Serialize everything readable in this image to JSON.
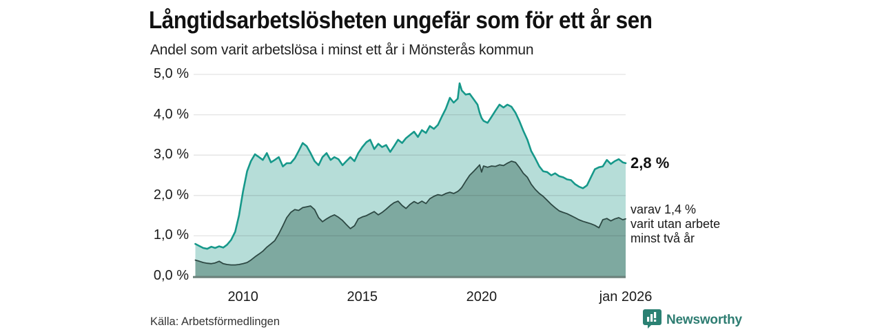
{
  "header": {
    "title": "Långtidsarbetslösheten ungefär som för ett år sen",
    "subtitle": "Andel som varit arbetslösa i minst ett år i Mönsterås kommun"
  },
  "annotations": {
    "latest_value": "2,8 %",
    "secondary_lines": [
      "varav 1,4 %",
      "varit utan arbete",
      "minst två år"
    ]
  },
  "source": "Källa: Arbetsförmedlingen",
  "branding": {
    "name": "Newsworthy",
    "logo_icon": "bar-chart-pin-icon",
    "color": "#2e7d72",
    "icon_bg": "#2b8173"
  },
  "chart_data": {
    "type": "area",
    "title": "Långtidsarbetslösheten ungefär som för ett år sen",
    "subtitle": "Andel som varit arbetslösa i minst ett år i Mönsterås kommun",
    "ylabel": "",
    "xlabel": "",
    "ylim": [
      0,
      5
    ],
    "xlim": [
      2007.9,
      2026.04
    ],
    "grid": true,
    "legend_position": "none",
    "y_ticks": [
      {
        "value": 0,
        "label": "0,0 %"
      },
      {
        "value": 1,
        "label": "1,0 %"
      },
      {
        "value": 2,
        "label": "2,0 %"
      },
      {
        "value": 3,
        "label": "3,0 %"
      },
      {
        "value": 4,
        "label": "4,0 %"
      },
      {
        "value": 5,
        "label": "5,0 %"
      }
    ],
    "x_ticks": [
      {
        "t": 2010,
        "label": "2010"
      },
      {
        "t": 2015,
        "label": "2015"
      },
      {
        "t": 2020,
        "label": "2020"
      },
      {
        "t": 2026.04,
        "label": "jan 2026"
      }
    ],
    "x": [
      2008.0,
      2008.17,
      2008.33,
      2008.5,
      2008.67,
      2008.83,
      2009.0,
      2009.17,
      2009.33,
      2009.5,
      2009.67,
      2009.83,
      2010.0,
      2010.17,
      2010.33,
      2010.5,
      2010.67,
      2010.83,
      2011.0,
      2011.17,
      2011.33,
      2011.5,
      2011.67,
      2011.83,
      2012.0,
      2012.17,
      2012.33,
      2012.5,
      2012.67,
      2012.83,
      2013.0,
      2013.17,
      2013.33,
      2013.5,
      2013.67,
      2013.83,
      2014.0,
      2014.17,
      2014.33,
      2014.5,
      2014.67,
      2014.83,
      2015.0,
      2015.17,
      2015.33,
      2015.5,
      2015.67,
      2015.83,
      2016.0,
      2016.17,
      2016.33,
      2016.5,
      2016.67,
      2016.83,
      2017.0,
      2017.17,
      2017.33,
      2017.5,
      2017.67,
      2017.83,
      2018.0,
      2018.17,
      2018.33,
      2018.5,
      2018.67,
      2018.83,
      2019.0,
      2019.08,
      2019.17,
      2019.33,
      2019.5,
      2019.67,
      2019.83,
      2019.92,
      2020.0,
      2020.08,
      2020.25,
      2020.42,
      2020.58,
      2020.75,
      2020.92,
      2021.08,
      2021.25,
      2021.42,
      2021.58,
      2021.75,
      2021.92,
      2022.08,
      2022.25,
      2022.42,
      2022.58,
      2022.75,
      2022.92,
      2023.08,
      2023.25,
      2023.42,
      2023.58,
      2023.75,
      2023.92,
      2024.08,
      2024.25,
      2024.42,
      2024.58,
      2024.75,
      2024.92,
      2025.08,
      2025.25,
      2025.42,
      2025.58,
      2025.75,
      2025.92,
      2026.04
    ],
    "series": [
      {
        "name": "Andel arbetslösa minst ett år",
        "line_color": "#16988a",
        "fill_color": "#b6ddd8",
        "line_width": 2.6,
        "latest_label": "2,8 %",
        "values": [
          0.8,
          0.75,
          0.7,
          0.68,
          0.73,
          0.7,
          0.74,
          0.71,
          0.78,
          0.9,
          1.1,
          1.5,
          2.1,
          2.6,
          2.85,
          3.02,
          2.95,
          2.88,
          3.05,
          2.82,
          2.88,
          2.95,
          2.72,
          2.8,
          2.8,
          2.92,
          3.1,
          3.3,
          3.22,
          3.05,
          2.85,
          2.75,
          2.95,
          3.05,
          2.88,
          2.95,
          2.9,
          2.75,
          2.85,
          2.95,
          2.85,
          3.05,
          3.2,
          3.32,
          3.38,
          3.15,
          3.28,
          3.2,
          3.25,
          3.08,
          3.22,
          3.38,
          3.3,
          3.42,
          3.5,
          3.58,
          3.45,
          3.62,
          3.55,
          3.72,
          3.65,
          3.75,
          3.95,
          4.15,
          4.42,
          4.3,
          4.4,
          4.78,
          4.6,
          4.5,
          4.52,
          4.38,
          4.25,
          4.05,
          3.92,
          3.85,
          3.8,
          3.95,
          4.1,
          4.25,
          4.18,
          4.25,
          4.2,
          4.05,
          3.85,
          3.6,
          3.38,
          3.1,
          2.92,
          2.72,
          2.6,
          2.58,
          2.5,
          2.55,
          2.48,
          2.45,
          2.4,
          2.38,
          2.28,
          2.22,
          2.18,
          2.25,
          2.45,
          2.65,
          2.7,
          2.72,
          2.88,
          2.78,
          2.85,
          2.9,
          2.82,
          2.8
        ]
      },
      {
        "name": "varav utan arbete minst två år",
        "line_color": "#2d4843",
        "fill_color": "#7ea9a0",
        "line_width": 1.8,
        "latest_label": "1,4 %",
        "values": [
          0.4,
          0.37,
          0.34,
          0.32,
          0.31,
          0.33,
          0.37,
          0.31,
          0.29,
          0.28,
          0.28,
          0.29,
          0.31,
          0.34,
          0.4,
          0.48,
          0.55,
          0.62,
          0.72,
          0.8,
          0.88,
          1.05,
          1.25,
          1.45,
          1.58,
          1.65,
          1.63,
          1.7,
          1.72,
          1.74,
          1.65,
          1.45,
          1.35,
          1.42,
          1.48,
          1.52,
          1.46,
          1.38,
          1.28,
          1.18,
          1.25,
          1.42,
          1.47,
          1.5,
          1.55,
          1.6,
          1.52,
          1.58,
          1.66,
          1.75,
          1.82,
          1.86,
          1.75,
          1.68,
          1.78,
          1.85,
          1.8,
          1.86,
          1.8,
          1.92,
          1.98,
          2.02,
          2.0,
          2.05,
          2.08,
          2.05,
          2.1,
          2.14,
          2.2,
          2.35,
          2.5,
          2.6,
          2.7,
          2.76,
          2.58,
          2.73,
          2.7,
          2.73,
          2.72,
          2.76,
          2.74,
          2.8,
          2.85,
          2.82,
          2.7,
          2.55,
          2.45,
          2.28,
          2.15,
          2.05,
          1.98,
          1.88,
          1.78,
          1.7,
          1.62,
          1.58,
          1.55,
          1.5,
          1.45,
          1.4,
          1.36,
          1.33,
          1.3,
          1.26,
          1.2,
          1.4,
          1.43,
          1.37,
          1.42,
          1.45,
          1.4,
          1.42
        ]
      }
    ],
    "style": {
      "gridline_color": "rgba(0,0,0,0.11)",
      "baseline_color": "#6d827c"
    }
  }
}
